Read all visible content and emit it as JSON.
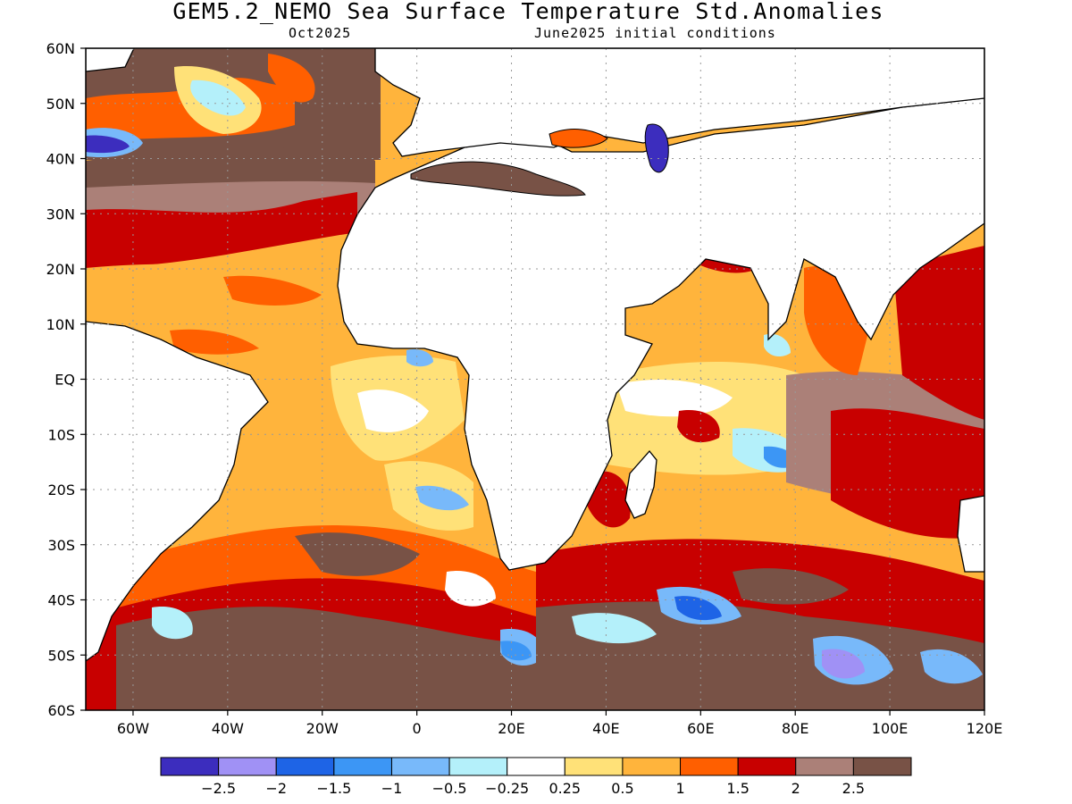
{
  "title": "GEM5.2_NEMO Sea Surface Temperature Std.Anomalies",
  "subtitle_left": "Oct2025",
  "subtitle_right": "June2025 initial conditions",
  "map": {
    "lon_range": [
      -70,
      120
    ],
    "lat_range": [
      -60,
      60
    ],
    "lat_ticks": [
      {
        "value": 60,
        "label": "60N"
      },
      {
        "value": 50,
        "label": "50N"
      },
      {
        "value": 40,
        "label": "40N"
      },
      {
        "value": 30,
        "label": "30N"
      },
      {
        "value": 20,
        "label": "20N"
      },
      {
        "value": 10,
        "label": "10N"
      },
      {
        "value": 0,
        "label": "EQ"
      },
      {
        "value": -10,
        "label": "10S"
      },
      {
        "value": -20,
        "label": "20S"
      },
      {
        "value": -30,
        "label": "30S"
      },
      {
        "value": -40,
        "label": "40S"
      },
      {
        "value": -50,
        "label": "50S"
      },
      {
        "value": -60,
        "label": "60S"
      }
    ],
    "lon_ticks": [
      {
        "value": -60,
        "label": "60W"
      },
      {
        "value": -40,
        "label": "40W"
      },
      {
        "value": -20,
        "label": "20W"
      },
      {
        "value": 0,
        "label": "0"
      },
      {
        "value": 20,
        "label": "20E"
      },
      {
        "value": 40,
        "label": "40E"
      },
      {
        "value": 60,
        "label": "60E"
      },
      {
        "value": 80,
        "label": "80E"
      },
      {
        "value": 100,
        "label": "100E"
      },
      {
        "value": 120,
        "label": "120E"
      }
    ],
    "grid": true
  },
  "colorbar": {
    "colors": [
      "#3c2dbe",
      "#a091f5",
      "#1e64e6",
      "#3c96f5",
      "#78b9fa",
      "#b4f0fa",
      "#ffffff",
      "#ffe178",
      "#ffb43c",
      "#ff5f00",
      "#c80000",
      "#ab8078",
      "#785246"
    ],
    "labels": [
      "-2.5",
      "-2",
      "-1.5",
      "-1",
      "-0.5",
      "-0.25",
      "0.25",
      "0.5",
      "1",
      "1.5",
      "2",
      "2.5"
    ]
  }
}
